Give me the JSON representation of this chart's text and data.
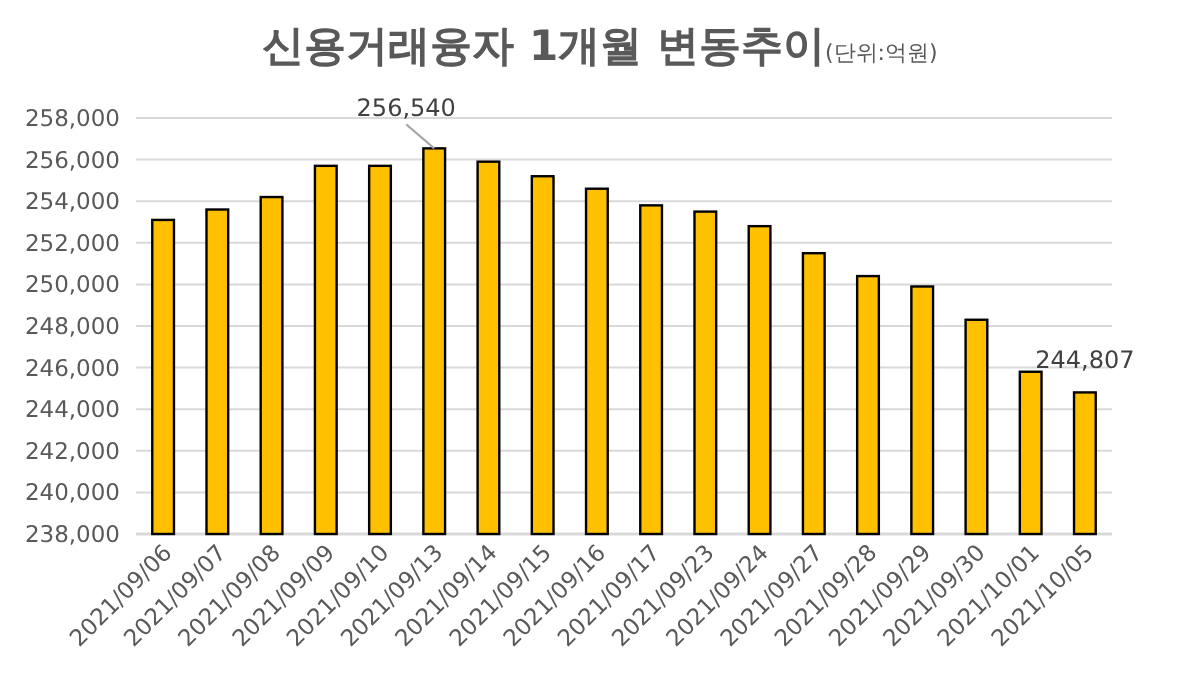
{
  "chart_data": {
    "type": "bar",
    "title": "신용거래융자 1개월 변동추이",
    "subtitle": "(단위:억원)",
    "categories": [
      "2021/09/06",
      "2021/09/07",
      "2021/09/08",
      "2021/09/09",
      "2021/09/10",
      "2021/09/13",
      "2021/09/14",
      "2021/09/15",
      "2021/09/16",
      "2021/09/17",
      "2021/09/23",
      "2021/09/24",
      "2021/09/27",
      "2021/09/28",
      "2021/09/29",
      "2021/09/30",
      "2021/10/01",
      "2021/10/05"
    ],
    "values": [
      253100,
      253600,
      254200,
      255700,
      255700,
      256540,
      255900,
      255200,
      254600,
      253800,
      253500,
      252800,
      251500,
      250400,
      249900,
      248300,
      245800,
      244807
    ],
    "value_labels": [
      null,
      null,
      null,
      null,
      null,
      "256,540",
      null,
      null,
      null,
      null,
      null,
      null,
      null,
      null,
      null,
      null,
      null,
      "244,807"
    ],
    "color": "#ffc000",
    "ylim": [
      238000,
      258000
    ],
    "yticks": [
      {
        "value": 238000,
        "label": "238,000"
      },
      {
        "value": 240000,
        "label": "240,000"
      },
      {
        "value": 242000,
        "label": "242,000"
      },
      {
        "value": 244000,
        "label": "244,000"
      },
      {
        "value": 246000,
        "label": "246,000"
      },
      {
        "value": 248000,
        "label": "248,000"
      },
      {
        "value": 250000,
        "label": "250,000"
      },
      {
        "value": 252000,
        "label": "252,000"
      },
      {
        "value": 254000,
        "label": "254,000"
      },
      {
        "value": 256000,
        "label": "256,000"
      },
      {
        "value": 258000,
        "label": "258,000"
      }
    ],
    "grid": "y"
  }
}
